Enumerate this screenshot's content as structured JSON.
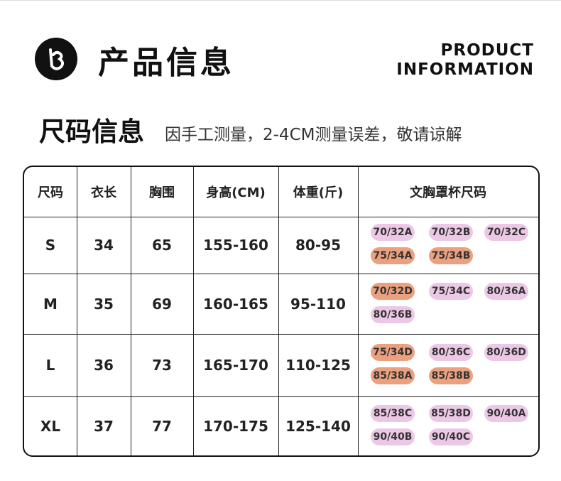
{
  "header": {
    "title": "产品信息",
    "english_title": [
      "PRODUCT",
      "INFORMATION"
    ]
  },
  "section": {
    "title": "尺码信息",
    "note": "因手工测量，2-4CM测量误差，敬请谅解"
  },
  "table": {
    "headers": [
      "尺码",
      "衣长",
      "胸围",
      "身高(CM)",
      "体重(斤)",
      "文胸罩杯尺码"
    ],
    "rows": [
      {
        "cells": [
          "S",
          "34",
          "65",
          "155-160",
          "80-95"
        ],
        "tags": [
          {
            "label": "70/32A",
            "color": "#ecc8e6"
          },
          {
            "label": "70/32B",
            "color": "#ecc8e6"
          },
          {
            "label": "70/32C",
            "color": "#ecc8e6"
          },
          {
            "label": "75/34A",
            "color": "#eba07f"
          },
          {
            "label": "75/34B",
            "color": "#eba07f"
          }
        ]
      },
      {
        "cells": [
          "M",
          "35",
          "69",
          "160-165",
          "95-110"
        ],
        "tags": [
          {
            "label": "70/32D",
            "color": "#eba07f"
          },
          {
            "label": "75/34C",
            "color": "#ecc8e6"
          },
          {
            "label": "80/36A",
            "color": "#ecc8e6"
          },
          {
            "label": "80/36B",
            "color": "#ecc8e6"
          }
        ]
      },
      {
        "cells": [
          "L",
          "36",
          "73",
          "165-170",
          "110-125"
        ],
        "tags": [
          {
            "label": "75/34D",
            "color": "#eba07f"
          },
          {
            "label": "80/36C",
            "color": "#ecc8e6"
          },
          {
            "label": "80/36D",
            "color": "#ecc8e6"
          },
          {
            "label": "85/38A",
            "color": "#eba07f"
          },
          {
            "label": "85/38B",
            "color": "#eba07f"
          }
        ]
      },
      {
        "cells": [
          "XL",
          "37",
          "77",
          "170-175",
          "125-140"
        ],
        "tags": [
          {
            "label": "85/38C",
            "color": "#ecc8e6"
          },
          {
            "label": "85/38D",
            "color": "#ecc8e6"
          },
          {
            "label": "90/40A",
            "color": "#ecc8e6"
          },
          {
            "label": "90/40B",
            "color": "#ecc8e6"
          },
          {
            "label": "90/40C",
            "color": "#ecc8e6"
          }
        ]
      }
    ]
  }
}
